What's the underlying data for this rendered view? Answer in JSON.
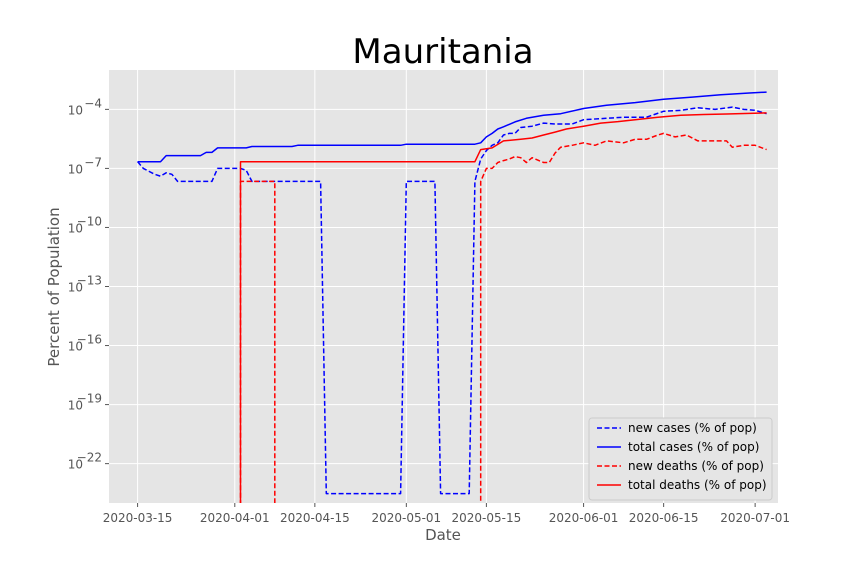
{
  "chart_data": {
    "type": "line",
    "title": "Mauritania",
    "xlabel": "Date",
    "ylabel": "Percent of Population",
    "yscale": "log",
    "ylim": [
      1e-24,
      0.01
    ],
    "xlim": [
      "2020-03-10",
      "2020-07-05"
    ],
    "grid": true,
    "legend_position": "lower-right",
    "x_ticks": [
      "2020-03-15",
      "2020-04-01",
      "2020-04-15",
      "2020-05-01",
      "2020-05-15",
      "2020-06-01",
      "2020-06-15",
      "2020-07-01"
    ],
    "y_ticks": [
      {
        "base": "10",
        "exp": "−4",
        "value": 0.0001
      },
      {
        "base": "10",
        "exp": "−7",
        "value": 1e-07
      },
      {
        "base": "10",
        "exp": "−10",
        "value": 1e-10
      },
      {
        "base": "10",
        "exp": "−13",
        "value": 1e-13
      },
      {
        "base": "10",
        "exp": "−16",
        "value": 1e-16
      },
      {
        "base": "10",
        "exp": "−19",
        "value": 1e-19
      },
      {
        "base": "10",
        "exp": "−22",
        "value": 1e-22
      }
    ],
    "series": [
      {
        "name": "new cases (% of pop)",
        "color": "#0000ff",
        "style": "dashed",
        "points": [
          [
            "2020-03-15",
            2.2e-07
          ],
          [
            "2020-03-16",
            1e-07
          ],
          [
            "2020-03-18",
            5e-08
          ],
          [
            "2020-03-19",
            4e-08
          ],
          [
            "2020-03-20",
            6e-08
          ],
          [
            "2020-03-21",
            5e-08
          ],
          [
            "2020-03-22",
            2.2e-08
          ],
          [
            "2020-03-28",
            2.2e-08
          ],
          [
            "2020-03-29",
            1e-07
          ],
          [
            "2020-04-02",
            1e-07
          ],
          [
            "2020-04-03",
            8e-08
          ],
          [
            "2020-04-04",
            2.2e-08
          ],
          [
            "2020-04-16",
            2.2e-08
          ],
          [
            "2020-04-17",
            3e-24
          ],
          [
            "2020-04-30",
            3e-24
          ],
          [
            "2020-05-01",
            2.2e-08
          ],
          [
            "2020-05-06",
            2.2e-08
          ],
          [
            "2020-05-07",
            3e-24
          ],
          [
            "2020-05-12",
            3e-24
          ],
          [
            "2020-05-13",
            2.2e-08
          ],
          [
            "2020-05-14",
            3e-07
          ],
          [
            "2020-05-15",
            8e-07
          ],
          [
            "2020-05-16",
            1.5e-06
          ],
          [
            "2020-05-17",
            2e-06
          ],
          [
            "2020-05-18",
            5e-06
          ],
          [
            "2020-05-19",
            6e-06
          ],
          [
            "2020-05-20",
            6e-06
          ],
          [
            "2020-05-21",
            1.2e-05
          ],
          [
            "2020-05-23",
            1.4e-05
          ],
          [
            "2020-05-25",
            2e-05
          ],
          [
            "2020-05-27",
            1.8e-05
          ],
          [
            "2020-05-30",
            1.8e-05
          ],
          [
            "2020-06-01",
            3e-05
          ],
          [
            "2020-06-05",
            3.5e-05
          ],
          [
            "2020-06-08",
            4e-05
          ],
          [
            "2020-06-12",
            4e-05
          ],
          [
            "2020-06-15",
            8e-05
          ],
          [
            "2020-06-18",
            9e-05
          ],
          [
            "2020-06-21",
            0.00012
          ],
          [
            "2020-06-24",
            0.0001
          ],
          [
            "2020-06-27",
            0.00013
          ],
          [
            "2020-06-29",
            0.0001
          ],
          [
            "2020-07-01",
            9e-05
          ],
          [
            "2020-07-03",
            6e-05
          ]
        ]
      },
      {
        "name": "total cases (% of pop)",
        "color": "#0000ff",
        "style": "solid",
        "points": [
          [
            "2020-03-15",
            2.2e-07
          ],
          [
            "2020-03-19",
            2.2e-07
          ],
          [
            "2020-03-20",
            4.5e-07
          ],
          [
            "2020-03-26",
            4.5e-07
          ],
          [
            "2020-03-27",
            6.5e-07
          ],
          [
            "2020-03-28",
            6.5e-07
          ],
          [
            "2020-03-29",
            1.1e-06
          ],
          [
            "2020-04-03",
            1.1e-06
          ],
          [
            "2020-04-04",
            1.3e-06
          ],
          [
            "2020-04-11",
            1.3e-06
          ],
          [
            "2020-04-12",
            1.5e-06
          ],
          [
            "2020-04-30",
            1.5e-06
          ],
          [
            "2020-05-01",
            1.7e-06
          ],
          [
            "2020-05-13",
            1.7e-06
          ],
          [
            "2020-05-14",
            2e-06
          ],
          [
            "2020-05-15",
            4e-06
          ],
          [
            "2020-05-16",
            6e-06
          ],
          [
            "2020-05-17",
            1e-05
          ],
          [
            "2020-05-18",
            1.3e-05
          ],
          [
            "2020-05-20",
            2.3e-05
          ],
          [
            "2020-05-22",
            3.5e-05
          ],
          [
            "2020-05-25",
            5e-05
          ],
          [
            "2020-05-28",
            6e-05
          ],
          [
            "2020-06-01",
            0.00011
          ],
          [
            "2020-06-05",
            0.00016
          ],
          [
            "2020-06-10",
            0.00022
          ],
          [
            "2020-06-15",
            0.00033
          ],
          [
            "2020-06-20",
            0.00042
          ],
          [
            "2020-06-25",
            0.00055
          ],
          [
            "2020-06-30",
            0.00068
          ],
          [
            "2020-07-03",
            0.00075
          ]
        ]
      },
      {
        "name": "new deaths (% of pop)",
        "color": "#ff0000",
        "style": "dashed",
        "points": [
          [
            "2020-04-02",
            1e-30
          ],
          [
            "2020-04-02",
            2.2e-08
          ],
          [
            "2020-04-08",
            2.2e-08
          ],
          [
            "2020-04-08",
            1e-30
          ],
          [
            "2020-05-14",
            1e-30
          ],
          [
            "2020-05-14",
            2.2e-08
          ],
          [
            "2020-05-15",
            1e-07
          ],
          [
            "2020-05-16",
            1e-07
          ],
          [
            "2020-05-17",
            2e-07
          ],
          [
            "2020-05-18",
            2.5e-07
          ],
          [
            "2020-05-19",
            3e-07
          ],
          [
            "2020-05-20",
            4e-07
          ],
          [
            "2020-05-21",
            3.5e-07
          ],
          [
            "2020-05-22",
            2e-07
          ],
          [
            "2020-05-23",
            3.5e-07
          ],
          [
            "2020-05-25",
            2e-07
          ],
          [
            "2020-05-26",
            2e-07
          ],
          [
            "2020-05-27",
            6e-07
          ],
          [
            "2020-05-28",
            1.2e-06
          ],
          [
            "2020-05-30",
            1.5e-06
          ],
          [
            "2020-06-01",
            2e-06
          ],
          [
            "2020-06-03",
            1.5e-06
          ],
          [
            "2020-06-05",
            2.5e-06
          ],
          [
            "2020-06-08",
            2e-06
          ],
          [
            "2020-06-10",
            3e-06
          ],
          [
            "2020-06-12",
            3e-06
          ],
          [
            "2020-06-14",
            5e-06
          ],
          [
            "2020-06-15",
            6e-06
          ],
          [
            "2020-06-17",
            4e-06
          ],
          [
            "2020-06-19",
            5e-06
          ],
          [
            "2020-06-21",
            2.5e-06
          ],
          [
            "2020-06-23",
            2.5e-06
          ],
          [
            "2020-06-26",
            2.5e-06
          ],
          [
            "2020-06-27",
            1.2e-06
          ],
          [
            "2020-06-29",
            1.5e-06
          ],
          [
            "2020-07-01",
            1.5e-06
          ],
          [
            "2020-07-03",
            9e-07
          ]
        ]
      },
      {
        "name": "total deaths (% of pop)",
        "color": "#ff0000",
        "style": "solid",
        "points": [
          [
            "2020-04-02",
            1e-30
          ],
          [
            "2020-04-02",
            2.2e-07
          ],
          [
            "2020-05-13",
            2.2e-07
          ],
          [
            "2020-05-14",
            9e-07
          ],
          [
            "2020-05-16",
            1.1e-06
          ],
          [
            "2020-05-18",
            2.5e-06
          ],
          [
            "2020-05-21",
            3e-06
          ],
          [
            "2020-05-23",
            3.5e-06
          ],
          [
            "2020-05-25",
            5e-06
          ],
          [
            "2020-05-27",
            7e-06
          ],
          [
            "2020-05-29",
            1e-05
          ],
          [
            "2020-06-01",
            1.4e-05
          ],
          [
            "2020-06-04",
            2e-05
          ],
          [
            "2020-06-07",
            2.4e-05
          ],
          [
            "2020-06-10",
            3e-05
          ],
          [
            "2020-06-14",
            4e-05
          ],
          [
            "2020-06-18",
            5e-05
          ],
          [
            "2020-06-22",
            5.5e-05
          ],
          [
            "2020-06-26",
            5.8e-05
          ],
          [
            "2020-06-30",
            6.2e-05
          ],
          [
            "2020-07-03",
            6.6e-05
          ]
        ]
      }
    ]
  }
}
